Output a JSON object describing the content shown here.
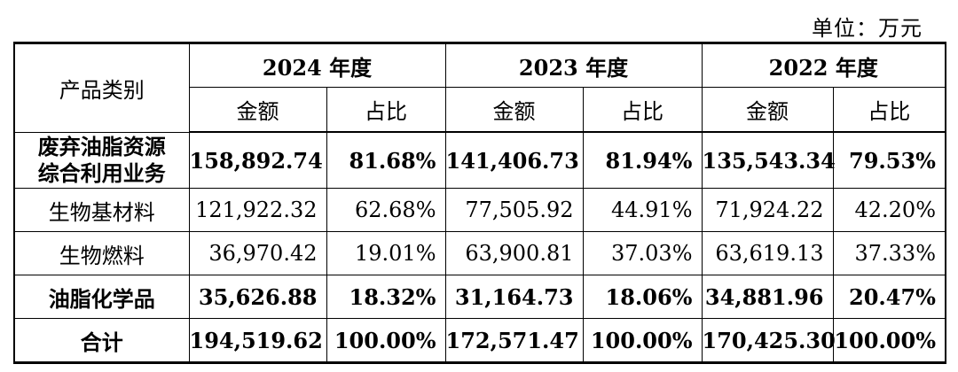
{
  "unit_label": "单位：万元",
  "header": {
    "category": "产品类别",
    "years": [
      "2024 年度",
      "2023 年度",
      "2022 年度"
    ],
    "amount": "金额",
    "ratio": "占比"
  },
  "rows": [
    {
      "category_lines": [
        "废弃油脂资源",
        "综合利用业务"
      ],
      "bold": true,
      "values": [
        "158,892.74",
        "81.68%",
        "141,406.73",
        "81.94%",
        "135,543.34",
        "79.53%"
      ]
    },
    {
      "category_lines": [
        "生物基材料"
      ],
      "bold": false,
      "values": [
        "121,922.32",
        "62.68%",
        "77,505.92",
        "44.91%",
        "71,924.22",
        "42.20%"
      ]
    },
    {
      "category_lines": [
        "生物燃料"
      ],
      "bold": false,
      "values": [
        "36,970.42",
        "19.01%",
        "63,900.81",
        "37.03%",
        "63,619.13",
        "37.33%"
      ]
    },
    {
      "category_lines": [
        "油脂化学品"
      ],
      "bold": true,
      "values": [
        "35,626.88",
        "18.32%",
        "31,164.73",
        "18.06%",
        "34,881.96",
        "20.47%"
      ]
    },
    {
      "category_lines": [
        "合计"
      ],
      "bold": true,
      "values": [
        "194,519.62",
        "100.00%",
        "172,571.47",
        "100.00%",
        "170,425.30",
        "100.00%"
      ]
    }
  ]
}
